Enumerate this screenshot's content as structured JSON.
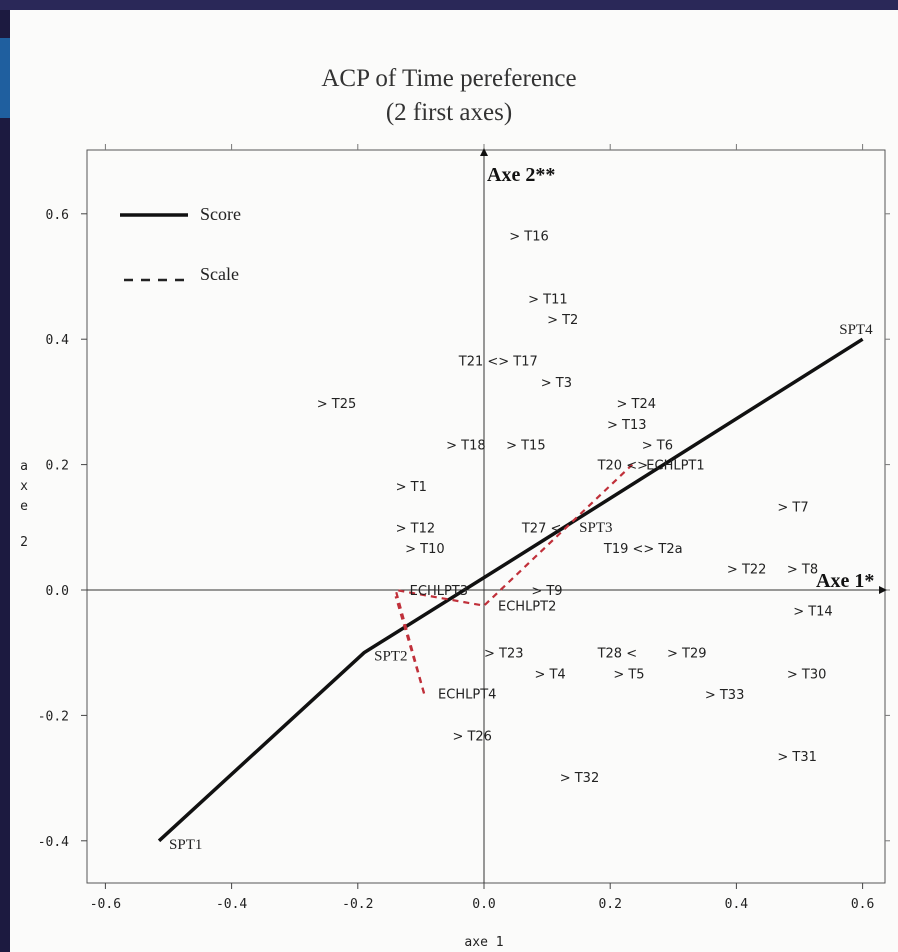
{
  "chart_data": {
    "type": "scatter",
    "title": "ACP of Time pereference",
    "subtitle": "(2 first axes)",
    "xlabel": "axe 1",
    "ylabel": "axe 2",
    "xlim": [
      -0.63,
      0.63
    ],
    "ylim": [
      -0.47,
      0.7
    ],
    "x_ticks": [
      "-0.6",
      "-0.4",
      "-0.2",
      "0.0",
      "0.2",
      "0.4",
      "0.6"
    ],
    "y_ticks": [
      "0.6",
      "0.4",
      "0.2",
      "0.0",
      "-0.2",
      "-0.4"
    ],
    "axis_names": {
      "x": "Axe 1*",
      "y": "Axe 2**"
    },
    "legend": {
      "placement": "top-left",
      "entries": [
        {
          "label": "Score",
          "style": "solid",
          "color": "#111111"
        },
        {
          "label": "Scale",
          "style": "dashed",
          "color": "#222222"
        }
      ]
    },
    "score_line": {
      "name": "Score",
      "color": "#111111",
      "points": [
        {
          "label": "SPT1",
          "x": -0.515,
          "y": -0.4
        },
        {
          "label": "SPT2",
          "x": -0.19,
          "y": -0.1
        },
        {
          "label": "SPT3",
          "x": 0.135,
          "y": 0.105
        },
        {
          "label": "SPT4",
          "x": 0.6,
          "y": 0.4
        }
      ]
    },
    "scale_line": {
      "name": "Scale",
      "color": "#c0303a",
      "points": [
        {
          "label": "ECHLPT4",
          "x": -0.095,
          "y": -0.165
        },
        {
          "label": "ECHLPT3",
          "x": -0.14,
          "y": 0.0
        },
        {
          "label": "ECHLPT2",
          "x": 0.0,
          "y": -0.025
        },
        {
          "label": "ECHLPT1",
          "x": 0.235,
          "y": 0.2
        }
      ]
    },
    "points": [
      {
        "label": "> T16",
        "x": 0.04,
        "y": 0.565
      },
      {
        "label": "> T11",
        "x": 0.07,
        "y": 0.465
      },
      {
        "label": "> T2",
        "x": 0.1,
        "y": 0.432
      },
      {
        "label": "T21 <> T17",
        "x": -0.04,
        "y": 0.366
      },
      {
        "label": "> T3",
        "x": 0.09,
        "y": 0.332
      },
      {
        "label": "> T25",
        "x": -0.265,
        "y": 0.298
      },
      {
        "label": "> T24",
        "x": 0.21,
        "y": 0.298
      },
      {
        "label": "> T13",
        "x": 0.195,
        "y": 0.265
      },
      {
        "label": "> T18",
        "x": -0.06,
        "y": 0.232
      },
      {
        "label": "> T15",
        "x": 0.035,
        "y": 0.232
      },
      {
        "label": "> T6",
        "x": 0.25,
        "y": 0.232
      },
      {
        "label": "T20 <>",
        "x": 0.18,
        "y": 0.2
      },
      {
        "label": "> T1",
        "x": -0.14,
        "y": 0.166
      },
      {
        "label": "> T7",
        "x": 0.465,
        "y": 0.133
      },
      {
        "label": "> T12",
        "x": -0.14,
        "y": 0.1
      },
      {
        "label": "T27 <",
        "x": 0.06,
        "y": 0.1
      },
      {
        "label": "> T10",
        "x": -0.125,
        "y": 0.067
      },
      {
        "label": "T19 <> T2a",
        "x": 0.19,
        "y": 0.067
      },
      {
        "label": "> T22",
        "x": 0.385,
        "y": 0.034
      },
      {
        "label": "> T8",
        "x": 0.48,
        "y": 0.034
      },
      {
        "label": "> T9",
        "x": 0.075,
        "y": 0.0
      },
      {
        "label": "> T14",
        "x": 0.49,
        "y": -0.033
      },
      {
        "label": "> T23",
        "x": 0.0,
        "y": -0.1
      },
      {
        "label": "T28 <",
        "x": 0.18,
        "y": -0.1
      },
      {
        "label": "> T29",
        "x": 0.29,
        "y": -0.1
      },
      {
        "label": "> T4",
        "x": 0.08,
        "y": -0.133
      },
      {
        "label": "> T5",
        "x": 0.205,
        "y": -0.133
      },
      {
        "label": "> T30",
        "x": 0.48,
        "y": -0.133
      },
      {
        "label": "> T33",
        "x": 0.35,
        "y": -0.166
      },
      {
        "label": "> T26",
        "x": -0.05,
        "y": -0.232
      },
      {
        "label": "> T31",
        "x": 0.465,
        "y": -0.265
      },
      {
        "label": "> T32",
        "x": 0.12,
        "y": -0.298
      }
    ]
  }
}
